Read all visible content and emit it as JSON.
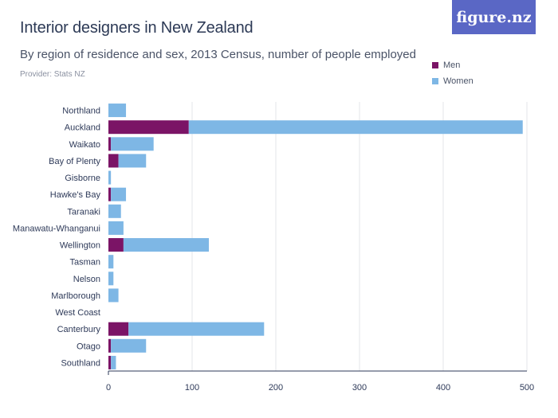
{
  "header": {
    "title": "Interior designers in New Zealand",
    "subtitle": "By region of residence and sex, 2013 Census, number of people employed",
    "provider": "Provider: Stats NZ",
    "logo_text": "figure.nz"
  },
  "colors": {
    "men": "#7b1466",
    "women": "#7eb7e5",
    "grid": "#e3e5ea",
    "logo_bg": "#5a67c5"
  },
  "chart_data": {
    "type": "bar",
    "orientation": "horizontal",
    "stacked": true,
    "title": "Interior designers in New Zealand",
    "subtitle": "By region of residence and sex, 2013 Census, number of people employed",
    "categories": [
      "Northland",
      "Auckland",
      "Waikato",
      "Bay of Plenty",
      "Gisborne",
      "Hawke's Bay",
      "Taranaki",
      "Manawatu-Whanganui",
      "Wellington",
      "Tasman",
      "Nelson",
      "Marlborough",
      "West Coast",
      "Canterbury",
      "Otago",
      "Southland"
    ],
    "series": [
      {
        "name": "Men",
        "values": [
          0,
          96,
          3,
          12,
          0,
          3,
          0,
          0,
          18,
          0,
          0,
          0,
          0,
          24,
          3,
          3
        ]
      },
      {
        "name": "Women",
        "values": [
          21,
          399,
          51,
          33,
          3,
          18,
          15,
          18,
          102,
          6,
          6,
          12,
          0,
          162,
          42,
          6
        ]
      }
    ],
    "x_ticks": [
      0,
      100,
      200,
      300,
      400,
      500
    ],
    "xlim": [
      0,
      500
    ],
    "grid": true,
    "legend_position": "top-right"
  }
}
